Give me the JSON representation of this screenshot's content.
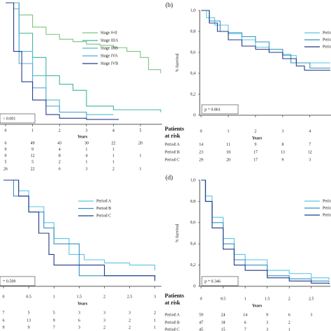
{
  "chart_data": [
    {
      "type": "line",
      "step": true,
      "x_label": "Years",
      "annotation": "< 0.001",
      "xlim": [
        0,
        5.75
      ],
      "ylim": [
        0,
        1
      ],
      "xticks": [
        0,
        1,
        2,
        3,
        4,
        5
      ],
      "series": [
        {
          "name": "Stage 0-II",
          "color": "#7cc47a",
          "x": [
            0,
            0.3,
            0.5,
            1,
            1.5,
            2,
            2.5,
            3,
            3.5,
            4,
            4.5,
            5,
            5.3,
            5.75
          ],
          "values": [
            1,
            0.95,
            0.9,
            0.8,
            0.74,
            0.7,
            0.68,
            0.66,
            0.65,
            0.63,
            0.6,
            0.55,
            0.45,
            0.42
          ]
        },
        {
          "name": "Stage IIIA",
          "color": "#3fb5a0",
          "x": [
            0,
            0.5,
            1,
            1.5,
            2,
            2.5,
            3,
            4,
            5.75
          ],
          "values": [
            1,
            0.75,
            0.55,
            0.4,
            0.33,
            0.28,
            0.15,
            0.12,
            0.1
          ]
        },
        {
          "name": "Stage IIIB",
          "color": "#4cc0cc",
          "x": [
            0,
            0.5,
            1,
            1.5,
            2,
            3,
            4
          ],
          "values": [
            1,
            0.6,
            0.4,
            0.2,
            0.1,
            0.08,
            0.08
          ]
        },
        {
          "name": "Stage IVA",
          "color": "#5aa8dc",
          "x": [
            0,
            0.5,
            1,
            1.5,
            2,
            3
          ],
          "values": [
            1,
            0.5,
            0.3,
            0.15,
            0.1,
            0.05
          ]
        },
        {
          "name": "Stage IVB",
          "color": "#283c8c",
          "x": [
            0,
            0.3,
            0.6,
            1,
            1.5,
            2,
            3,
            4.2
          ],
          "values": [
            1,
            0.6,
            0.35,
            0.2,
            0.08,
            0.05,
            0.04,
            0.04
          ]
        }
      ],
      "risk_table": {
        "rows": [
          {
            "values": [
              6,
              49,
              43,
              30,
              22,
              20
            ]
          },
          {
            "values": [
              9,
              9,
              4,
              1,
              1
            ]
          },
          {
            "values": [
              0,
              12,
              8,
              4,
              1,
              1
            ]
          },
          {
            "values": [
              5,
              5,
              2,
              1,
              1
            ]
          },
          {
            "values": [
              26,
              22,
              6,
              3,
              2,
              1
            ]
          }
        ]
      }
    },
    {
      "type": "line",
      "step": true,
      "panel_label": "(b)",
      "y_label": "% Survival",
      "x_label": "Years",
      "annotation": "p = 0.861",
      "xlim": [
        0,
        4.75
      ],
      "ylim": [
        0,
        1
      ],
      "xticks": [
        0,
        1,
        2,
        3,
        4
      ],
      "yticks": [
        0,
        {
          "value": 0.2,
          "label": "0,2"
        },
        {
          "value": 0.4,
          "label": "0,4"
        },
        {
          "value": 0.6,
          "label": "0,6"
        },
        {
          "value": 0.8,
          "label": "0,8"
        },
        {
          "value": 1,
          "label": "1,0"
        }
      ],
      "series": [
        {
          "name": "Period A",
          "color": "#5cc4e4",
          "x": [
            0,
            0.2,
            0.5,
            1,
            1.5,
            2,
            2.5,
            3,
            3.5,
            4,
            4.75
          ],
          "values": [
            1,
            0.93,
            0.86,
            0.79,
            0.72,
            0.65,
            0.6,
            0.57,
            0.5,
            0.5,
            0.5
          ]
        },
        {
          "name": "Period B",
          "color": "#3592c4",
          "x": [
            0,
            0.3,
            0.7,
            1,
            1.5,
            2,
            2.5,
            3,
            3.3,
            4,
            4.75
          ],
          "values": [
            1,
            0.9,
            0.8,
            0.78,
            0.75,
            0.7,
            0.63,
            0.58,
            0.5,
            0.45,
            0.45
          ]
        },
        {
          "name": "Period C",
          "color": "#1f3a88",
          "x": [
            0,
            0.3,
            0.6,
            1,
            1.5,
            2,
            2.5,
            3,
            3.5,
            3.8,
            4.75
          ],
          "values": [
            1,
            0.88,
            0.8,
            0.72,
            0.66,
            0.63,
            0.6,
            0.54,
            0.47,
            0.43,
            0.43
          ]
        }
      ],
      "risk_table": {
        "title": [
          "Patients",
          "at risk"
        ],
        "rows": [
          {
            "name": "Period A",
            "values": [
              14,
              11,
              9,
              8,
              7
            ]
          },
          {
            "name": "Period B",
            "values": [
              23,
              18,
              17,
              13,
              12
            ]
          },
          {
            "name": "Period C",
            "values": [
              29,
              20,
              17,
              9,
              3
            ]
          }
        ]
      }
    },
    {
      "type": "line",
      "step": true,
      "x_label": "Years",
      "annotation": "= 0.509",
      "xlim": [
        0,
        3.1
      ],
      "ylim": [
        0,
        1
      ],
      "xticks": [
        0,
        0.5,
        1,
        1.5,
        2,
        2.5,
        3
      ],
      "series": [
        {
          "name": "Period A",
          "color": "#5cc4e4",
          "x": [
            0,
            0.3,
            0.5,
            0.8,
            1,
            1.3,
            1.6,
            2,
            2.5,
            3
          ],
          "values": [
            1,
            0.9,
            0.75,
            0.6,
            0.45,
            0.3,
            0.25,
            0.22,
            0.2,
            0.15
          ]
        },
        {
          "name": "Period B",
          "color": "#3592c4",
          "x": [
            0,
            0.2,
            0.5,
            0.8,
            1,
            1.5,
            2,
            2.5,
            3
          ],
          "values": [
            1,
            0.85,
            0.7,
            0.55,
            0.4,
            0.1,
            0.1,
            0.1,
            0.08
          ]
        },
        {
          "name": "Period C",
          "color": "#1f3a88",
          "x": [
            0,
            0.3,
            0.5,
            0.7,
            0.9,
            1,
            1.5,
            2,
            2.5,
            3
          ],
          "values": [
            1,
            0.85,
            0.7,
            0.5,
            0.3,
            0.2,
            0.2,
            0.1,
            0.1,
            0.05
          ]
        }
      ],
      "risk_table": {
        "rows": [
          {
            "values": [
              7,
              5,
              5,
              3,
              3,
              3,
              2
            ]
          },
          {
            "values": [
              6,
              13,
              9,
              6,
              3,
              2,
              1
            ]
          },
          {
            "values": [
              9,
              9,
              7,
              3,
              2,
              2,
              1
            ]
          }
        ]
      }
    },
    {
      "type": "line",
      "step": true,
      "panel_label": "(d)",
      "y_label": "% Survival",
      "x_label": "Years",
      "annotation": "p = 0.346",
      "xlim": [
        0,
        2.9
      ],
      "ylim": [
        0,
        1
      ],
      "xticks": [
        0,
        0.5,
        1,
        1.5,
        2,
        2.5
      ],
      "yticks": [
        0,
        {
          "value": 0.2,
          "label": "0,2"
        },
        {
          "value": 0.4,
          "label": "0,4"
        },
        {
          "value": 0.6,
          "label": "0,6"
        },
        {
          "value": 0.8,
          "label": "0,8"
        },
        {
          "value": 1,
          "label": "1,0"
        }
      ],
      "series": [
        {
          "name": "Period A",
          "color": "#5cc4e4",
          "x": [
            0,
            0.1,
            0.25,
            0.5,
            0.75,
            1,
            1.5,
            2,
            2.5,
            2.9
          ],
          "values": [
            1,
            0.85,
            0.65,
            0.45,
            0.3,
            0.25,
            0.15,
            0.12,
            0.08,
            0.06
          ]
        },
        {
          "name": "Period B",
          "color": "#3592c4",
          "x": [
            0,
            0.1,
            0.25,
            0.5,
            0.75,
            1,
            1.5,
            2,
            2.5,
            2.9
          ],
          "values": [
            1,
            0.8,
            0.6,
            0.4,
            0.25,
            0.2,
            0.1,
            0.07,
            0.05,
            0.04
          ]
        },
        {
          "name": "Period C",
          "color": "#1f3a88",
          "x": [
            0,
            0.1,
            0.25,
            0.5,
            0.75,
            1,
            1.5,
            2,
            2.5,
            2.9
          ],
          "values": [
            1,
            0.8,
            0.55,
            0.35,
            0.2,
            0.15,
            0.08,
            0.05,
            0.03,
            0.02
          ]
        }
      ],
      "risk_table": {
        "title": [
          "Patients",
          "at risk"
        ],
        "rows": [
          {
            "name": "Period A",
            "values": [
              59,
              24,
              14,
              9,
              6,
              3
            ]
          },
          {
            "name": "Period B",
            "values": [
              47,
              18,
              6,
              3,
              2
            ]
          },
          {
            "name": "Period C",
            "values": [
              45,
              15,
              7,
              3,
              1
            ]
          }
        ]
      }
    }
  ]
}
